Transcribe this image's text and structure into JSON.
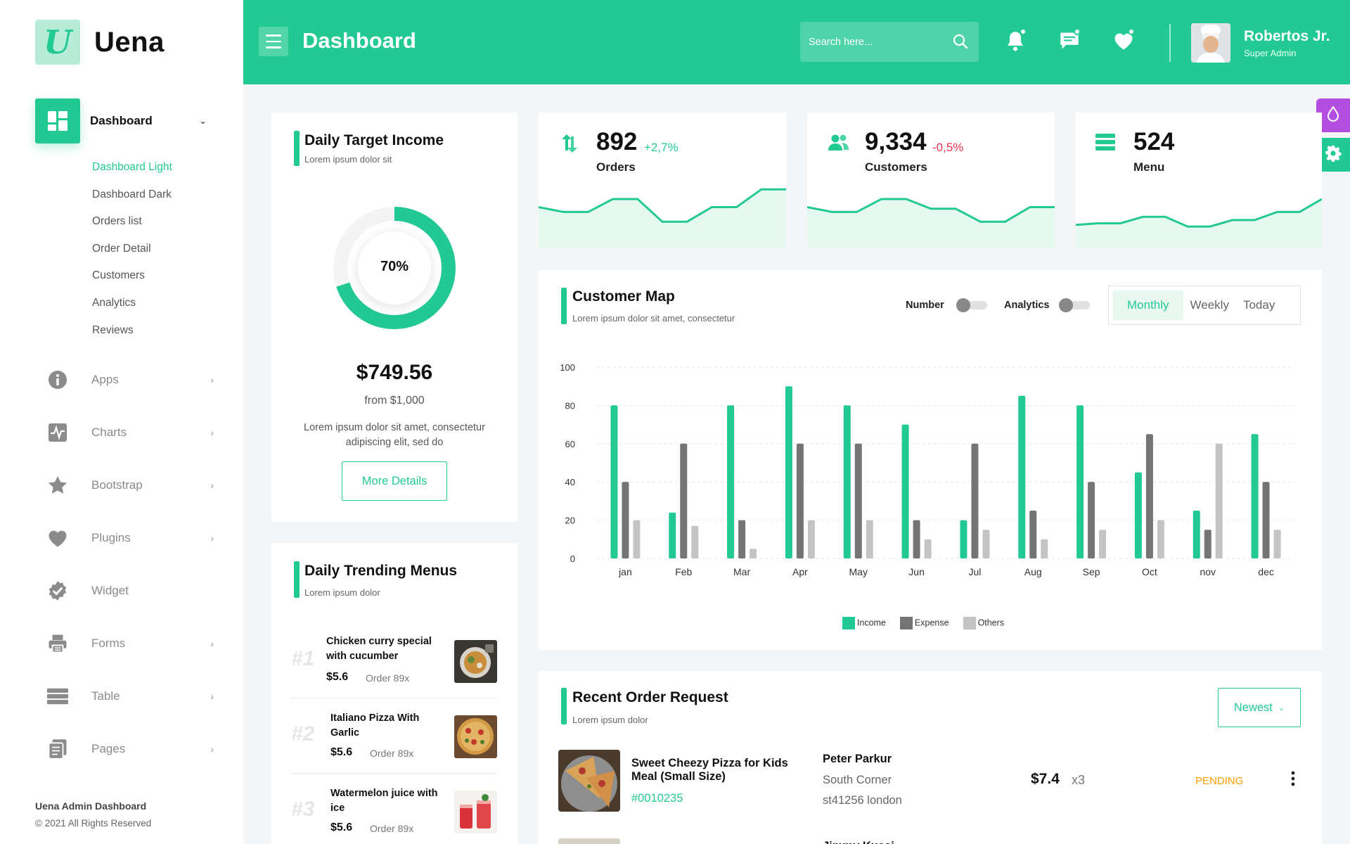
{
  "brand": {
    "name": "Uena",
    "logo_letter": "U"
  },
  "sidebar": {
    "active": {
      "label": "Dashboard"
    },
    "subitems": [
      {
        "label": "Dashboard Light",
        "current": true
      },
      {
        "label": "Dashboard Dark"
      },
      {
        "label": "Orders list"
      },
      {
        "label": "Order Detail"
      },
      {
        "label": "Customers"
      },
      {
        "label": "Analytics"
      },
      {
        "label": "Reviews"
      }
    ],
    "items": [
      {
        "label": "Apps",
        "icon": "info-icon",
        "chevron": true
      },
      {
        "label": "Charts",
        "icon": "pulse-chart-icon",
        "chevron": true
      },
      {
        "label": "Bootstrap",
        "icon": "star-icon",
        "chevron": true
      },
      {
        "label": "Plugins",
        "icon": "heart-icon",
        "chevron": true
      },
      {
        "label": "Widget",
        "icon": "widget-check-icon",
        "chevron": false
      },
      {
        "label": "Forms",
        "icon": "printer-icon",
        "chevron": true
      },
      {
        "label": "Table",
        "icon": "table-icon",
        "chevron": true
      },
      {
        "label": "Pages",
        "icon": "pages-icon",
        "chevron": true
      }
    ],
    "footer": {
      "title": "Uena Admin Dashboard",
      "copyright": "© 2021 All Rights Reserved"
    }
  },
  "header": {
    "title": "Dashboard",
    "search_placeholder": "Search here...",
    "user": {
      "name": "Robertos Jr.",
      "role": "Super Admin"
    }
  },
  "colors": {
    "accent": "#23c993",
    "expense": "#747474",
    "others": "#c4c4c4",
    "negative": "#f0374e",
    "positive": "#23c993",
    "pending": "#ff9d00",
    "side_tool_purple": "#b34fe0"
  },
  "daily_target": {
    "title": "Daily Target Income",
    "subtitle": "Lorem ipsum dolor sit",
    "percent_label": "70%",
    "progress": 0.7,
    "amount": "$749.56",
    "from": "from $1,000",
    "description": "Lorem ipsum dolor sit amet, consectetur adipiscing elit, sed do",
    "button": "More Details"
  },
  "stats": [
    {
      "value": "892",
      "change": "+2,7%",
      "trend": "up",
      "label": "Orders",
      "icon": "arrows-updown-icon",
      "spark": [
        25,
        22,
        22,
        30,
        30,
        16,
        16,
        25,
        25,
        36,
        36
      ]
    },
    {
      "value": "9,334",
      "change": "-0,5%",
      "trend": "down",
      "label": "Customers",
      "icon": "users-icon",
      "spark": [
        25,
        22,
        22,
        30,
        30,
        24,
        24,
        16,
        16,
        25,
        25
      ]
    },
    {
      "value": "524",
      "change": "",
      "trend": "none",
      "label": "Menu",
      "icon": "menu-list-icon",
      "spark": [
        14,
        15,
        15,
        19,
        19,
        13,
        13,
        17,
        17,
        22,
        22,
        30
      ]
    }
  ],
  "customer_map": {
    "title": "Customer Map",
    "subtitle": "Lorem ipsum dolor sit amet, consectetur",
    "toggles": [
      {
        "label": "Number"
      },
      {
        "label": "Analytics"
      }
    ],
    "tabs": [
      {
        "label": "Monthly",
        "active": true
      },
      {
        "label": "Weekly"
      },
      {
        "label": "Today"
      }
    ]
  },
  "chart_data": {
    "type": "bar",
    "title": "",
    "xlabel": "",
    "ylabel": "",
    "ylim": [
      0,
      100
    ],
    "yticks": [
      0,
      20,
      40,
      60,
      80,
      100
    ],
    "grid": true,
    "legend_position": "bottom-center",
    "categories": [
      "jan",
      "Feb",
      "Mar",
      "Apr",
      "May",
      "Jun",
      "Jul",
      "Aug",
      "Sep",
      "Oct",
      "nov",
      "dec"
    ],
    "series": [
      {
        "name": "Income",
        "color": "#23c993",
        "values": [
          80,
          24,
          80,
          90,
          80,
          70,
          20,
          85,
          80,
          45,
          25,
          65
        ]
      },
      {
        "name": "Expense",
        "color": "#747474",
        "values": [
          40,
          60,
          20,
          60,
          60,
          20,
          60,
          25,
          40,
          65,
          15,
          40
        ]
      },
      {
        "name": "Others",
        "color": "#c4c4c4",
        "values": [
          20,
          17,
          5,
          20,
          20,
          10,
          15,
          10,
          15,
          20,
          60,
          15
        ]
      }
    ]
  },
  "trending": {
    "title": "Daily Trending Menus",
    "subtitle": "Lorem ipsum dolor",
    "items": [
      {
        "rank": "#1",
        "name": "Chicken curry special with cucumber",
        "price": "$5.6",
        "orders": "Order 89x"
      },
      {
        "rank": "#2",
        "name": "Italiano Pizza With Garlic",
        "price": "$5.6",
        "orders": "Order 89x"
      },
      {
        "rank": "#3",
        "name": "Watermelon juice with ice",
        "price": "$5.6",
        "orders": "Order 89x"
      }
    ]
  },
  "recent_orders": {
    "title": "Recent Order Request",
    "subtitle": "Lorem ipsum dolor",
    "filter": "Newest",
    "rows": [
      {
        "item": "Sweet Cheezy Pizza for Kids Meal (Small Size)",
        "id": "#0010235",
        "customer": "Peter Parkur",
        "address1": "South Corner",
        "address2": "st41256 london",
        "price": "$7.4",
        "qty": "x3",
        "status": "PENDING"
      }
    ],
    "next_customer_partial": "Jimmy Kueai"
  }
}
